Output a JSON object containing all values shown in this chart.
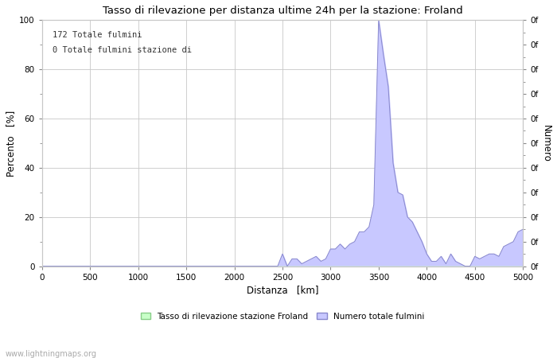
{
  "title": "Tasso di rilevazione per distanza ultime 24h per la stazione: Froland",
  "xlabel": "Distanza   [km]",
  "ylabel_left": "Percento   [%]",
  "ylabel_right": "Numero",
  "annotation_line1": "172 Totale fulmini",
  "annotation_line2": "0 Totale fulmini stazione di",
  "xlim": [
    0,
    5000
  ],
  "ylim": [
    0,
    100
  ],
  "xticks": [
    0,
    500,
    1000,
    1500,
    2000,
    2500,
    3000,
    3500,
    4000,
    4500,
    5000
  ],
  "yticks_left": [
    0,
    20,
    40,
    60,
    80,
    100
  ],
  "yticks_right": [
    0,
    10,
    20,
    30,
    40,
    50,
    60,
    70,
    80,
    90,
    100
  ],
  "yticks_right_labels": [
    "0f",
    "0f",
    "0f",
    "0f",
    "0f",
    "0f",
    "0f",
    "0f",
    "0f",
    "0f",
    "0f"
  ],
  "legend_label_green": "Tasso di rilevazione stazione Froland",
  "legend_label_blue": "Numero totale fulmini",
  "watermark": "www.lightningmaps.org",
  "bg_color": "#ffffff",
  "grid_color": "#c8c8c8",
  "fill_blue_color": "#c8c8ff",
  "fill_green_color": "#c8ffc8",
  "line_blue_color": "#8888cc",
  "line_green_color": "#88cc88",
  "x_distances": [
    0,
    50,
    100,
    150,
    200,
    250,
    300,
    350,
    400,
    450,
    500,
    550,
    600,
    650,
    700,
    750,
    800,
    850,
    900,
    950,
    1000,
    1050,
    1100,
    1150,
    1200,
    1250,
    1300,
    1350,
    1400,
    1450,
    1500,
    1550,
    1600,
    1650,
    1700,
    1750,
    1800,
    1850,
    1900,
    1950,
    2000,
    2050,
    2100,
    2150,
    2200,
    2250,
    2300,
    2350,
    2400,
    2450,
    2500,
    2550,
    2600,
    2650,
    2700,
    2750,
    2800,
    2850,
    2900,
    2950,
    3000,
    3050,
    3100,
    3150,
    3200,
    3250,
    3300,
    3350,
    3400,
    3450,
    3500,
    3550,
    3600,
    3650,
    3700,
    3750,
    3800,
    3850,
    3900,
    3950,
    4000,
    4050,
    4100,
    4150,
    4200,
    4250,
    4300,
    4350,
    4400,
    4450,
    4500,
    4550,
    4600,
    4650,
    4700,
    4750,
    4800,
    4850,
    4900,
    4950,
    5000
  ],
  "y_blue": [
    0,
    0,
    0,
    0,
    0,
    0,
    0,
    0,
    0,
    0,
    0,
    0,
    0,
    0,
    0,
    0,
    0,
    0,
    0,
    0,
    0,
    0,
    0,
    0,
    0,
    0,
    0,
    0,
    0,
    0,
    0,
    0,
    0,
    0,
    0,
    0,
    0,
    0,
    0,
    0,
    0,
    0,
    0,
    0,
    0,
    0,
    0,
    0,
    0,
    0,
    5,
    0,
    3,
    3,
    1,
    2,
    3,
    4,
    2,
    3,
    7,
    7,
    9,
    7,
    9,
    10,
    14,
    14,
    16,
    25,
    100,
    86,
    73,
    42,
    30,
    29,
    20,
    18,
    14,
    10,
    5,
    2,
    2,
    4,
    1,
    5,
    2,
    1,
    0,
    0,
    4,
    3,
    4,
    5,
    5,
    4,
    8,
    9,
    10,
    14,
    15
  ],
  "y_green": [
    0,
    0,
    0,
    0,
    0,
    0,
    0,
    0,
    0,
    0,
    0,
    0,
    0,
    0,
    0,
    0,
    0,
    0,
    0,
    0,
    0,
    0,
    0,
    0,
    0,
    0,
    0,
    0,
    0,
    0,
    0,
    0,
    0,
    0,
    0,
    0,
    0,
    0,
    0,
    0,
    0,
    0,
    0,
    0,
    0,
    0,
    0,
    0,
    0,
    0,
    0,
    0,
    0,
    0,
    0,
    0,
    0,
    0,
    0,
    0,
    0,
    0,
    0,
    0,
    0,
    0,
    0,
    0,
    0,
    0,
    0,
    0,
    0,
    0,
    0,
    0,
    0,
    0,
    0,
    0,
    0,
    0,
    0,
    0,
    0,
    0,
    0,
    0,
    0,
    0,
    0,
    0,
    0,
    0,
    0,
    0,
    0,
    0,
    0,
    0,
    0
  ]
}
